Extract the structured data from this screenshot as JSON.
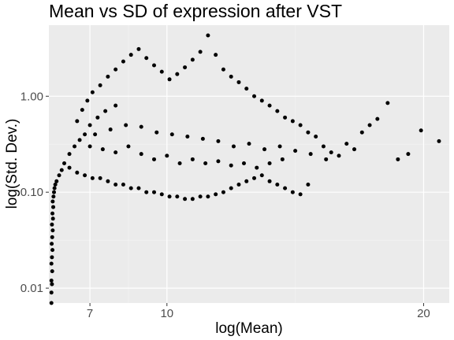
{
  "chart_data": {
    "type": "scatter",
    "title": "Mean vs SD of expression after VST",
    "xlabel": "log(Mean)",
    "ylabel": "log(Std. Dev.)",
    "x_scale": "linear",
    "y_scale": "log10",
    "xlim": [
      5.4,
      21.0
    ],
    "ylim": [
      0.007,
      5.5
    ],
    "x_ticks": [
      7,
      10,
      20
    ],
    "x_tick_labels": [
      "7",
      "10",
      "20"
    ],
    "y_ticks": [
      0.01,
      0.1,
      1.0
    ],
    "y_tick_labels": [
      "0.01",
      "0.10",
      "1.00"
    ],
    "grid": true,
    "legend": "none",
    "background_color": "#ebebeb",
    "point_color": "#000000",
    "points": [
      [
        5.5,
        0.007
      ],
      [
        5.5,
        0.009
      ],
      [
        5.52,
        0.011
      ],
      [
        5.5,
        0.012
      ],
      [
        5.53,
        0.015
      ],
      [
        5.5,
        0.018
      ],
      [
        5.52,
        0.021
      ],
      [
        5.54,
        0.025
      ],
      [
        5.51,
        0.029
      ],
      [
        5.53,
        0.034
      ],
      [
        5.55,
        0.04
      ],
      [
        5.52,
        0.046
      ],
      [
        5.56,
        0.053
      ],
      [
        5.54,
        0.06
      ],
      [
        5.57,
        0.07
      ],
      [
        5.55,
        0.08
      ],
      [
        5.58,
        0.09
      ],
      [
        5.6,
        0.1
      ],
      [
        5.62,
        0.11
      ],
      [
        5.65,
        0.12
      ],
      [
        5.7,
        0.13
      ],
      [
        5.8,
        0.15
      ],
      [
        5.9,
        0.17
      ],
      [
        6.0,
        0.2
      ],
      [
        6.2,
        0.25
      ],
      [
        6.4,
        0.3
      ],
      [
        6.6,
        0.35
      ],
      [
        6.8,
        0.4
      ],
      [
        7.0,
        0.5
      ],
      [
        7.3,
        0.6
      ],
      [
        7.6,
        0.7
      ],
      [
        8.0,
        0.8
      ],
      [
        6.5,
        0.55
      ],
      [
        6.7,
        0.72
      ],
      [
        6.9,
        0.9
      ],
      [
        7.1,
        1.1
      ],
      [
        7.4,
        1.3
      ],
      [
        7.7,
        1.6
      ],
      [
        8.0,
        1.9
      ],
      [
        8.3,
        2.3
      ],
      [
        8.6,
        2.7
      ],
      [
        8.9,
        3.1
      ],
      [
        9.2,
        2.5
      ],
      [
        9.5,
        2.1
      ],
      [
        9.8,
        1.8
      ],
      [
        10.1,
        1.5
      ],
      [
        10.4,
        1.7
      ],
      [
        10.7,
        2.0
      ],
      [
        11.0,
        2.4
      ],
      [
        11.3,
        2.9
      ],
      [
        11.6,
        4.3
      ],
      [
        11.9,
        2.7
      ],
      [
        12.2,
        1.9
      ],
      [
        12.5,
        1.6
      ],
      [
        12.8,
        1.4
      ],
      [
        13.1,
        1.2
      ],
      [
        13.4,
        1.0
      ],
      [
        13.7,
        0.9
      ],
      [
        14.0,
        0.8
      ],
      [
        14.3,
        0.7
      ],
      [
        14.6,
        0.6
      ],
      [
        14.9,
        0.55
      ],
      [
        15.2,
        0.5
      ],
      [
        15.5,
        0.42
      ],
      [
        15.8,
        0.38
      ],
      [
        16.1,
        0.3
      ],
      [
        16.4,
        0.26
      ],
      [
        16.7,
        0.24
      ],
      [
        17.0,
        0.32
      ],
      [
        17.3,
        0.28
      ],
      [
        17.6,
        0.42
      ],
      [
        17.9,
        0.5
      ],
      [
        18.2,
        0.58
      ],
      [
        18.6,
        0.85
      ],
      [
        19.0,
        0.22
      ],
      [
        19.4,
        0.25
      ],
      [
        19.9,
        0.44
      ],
      [
        20.6,
        0.34
      ],
      [
        6.2,
        0.18
      ],
      [
        6.5,
        0.16
      ],
      [
        6.8,
        0.15
      ],
      [
        7.1,
        0.14
      ],
      [
        7.4,
        0.14
      ],
      [
        7.7,
        0.13
      ],
      [
        8.0,
        0.12
      ],
      [
        8.3,
        0.12
      ],
      [
        8.6,
        0.11
      ],
      [
        8.9,
        0.11
      ],
      [
        9.2,
        0.1
      ],
      [
        9.5,
        0.1
      ],
      [
        9.8,
        0.095
      ],
      [
        10.1,
        0.09
      ],
      [
        10.4,
        0.09
      ],
      [
        10.7,
        0.085
      ],
      [
        11.0,
        0.085
      ],
      [
        11.3,
        0.09
      ],
      [
        11.6,
        0.09
      ],
      [
        11.9,
        0.095
      ],
      [
        12.2,
        0.1
      ],
      [
        12.5,
        0.11
      ],
      [
        12.8,
        0.12
      ],
      [
        13.1,
        0.13
      ],
      [
        13.4,
        0.14
      ],
      [
        13.7,
        0.15
      ],
      [
        14.0,
        0.13
      ],
      [
        14.3,
        0.12
      ],
      [
        14.6,
        0.11
      ],
      [
        14.9,
        0.1
      ],
      [
        15.2,
        0.095
      ],
      [
        15.5,
        0.12
      ],
      [
        7.0,
        0.3
      ],
      [
        7.5,
        0.28
      ],
      [
        8.0,
        0.26
      ],
      [
        8.5,
        0.3
      ],
      [
        9.0,
        0.25
      ],
      [
        9.5,
        0.22
      ],
      [
        10.0,
        0.24
      ],
      [
        10.5,
        0.2
      ],
      [
        11.0,
        0.22
      ],
      [
        11.5,
        0.2
      ],
      [
        12.0,
        0.21
      ],
      [
        12.5,
        0.19
      ],
      [
        13.0,
        0.2
      ],
      [
        13.5,
        0.18
      ],
      [
        14.0,
        0.2
      ],
      [
        14.5,
        0.22
      ],
      [
        7.2,
        0.4
      ],
      [
        7.8,
        0.45
      ],
      [
        8.4,
        0.5
      ],
      [
        9.0,
        0.48
      ],
      [
        9.6,
        0.42
      ],
      [
        10.2,
        0.4
      ],
      [
        10.8,
        0.38
      ],
      [
        11.4,
        0.36
      ],
      [
        12.0,
        0.34
      ],
      [
        12.6,
        0.3
      ],
      [
        13.2,
        0.32
      ],
      [
        13.8,
        0.28
      ],
      [
        14.4,
        0.3
      ],
      [
        15.0,
        0.27
      ],
      [
        15.6,
        0.25
      ],
      [
        16.2,
        0.22
      ]
    ]
  }
}
